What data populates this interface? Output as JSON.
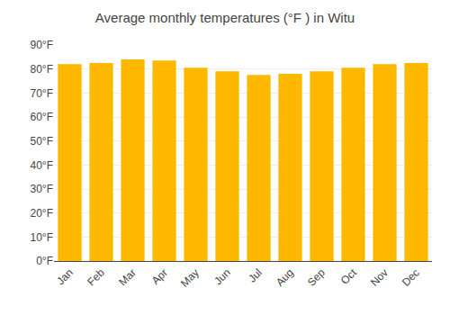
{
  "chart_data": {
    "type": "bar",
    "title": "Average monthly temperatures (°F ) in Witu",
    "categories": [
      "Jan",
      "Feb",
      "Mar",
      "Apr",
      "May",
      "Jun",
      "Jul",
      "Aug",
      "Sep",
      "Oct",
      "Nov",
      "Dec"
    ],
    "values": [
      82,
      82.5,
      84,
      83.5,
      80.5,
      79,
      77.5,
      78,
      79,
      80.5,
      82,
      82.5
    ],
    "color": "#FFB800",
    "ylim": [
      0,
      90
    ],
    "yticks": [
      {
        "value": 0,
        "label": "0°F"
      },
      {
        "value": 10,
        "label": "10°F"
      },
      {
        "value": 20,
        "label": "20°F"
      },
      {
        "value": 30,
        "label": "30°F"
      },
      {
        "value": 40,
        "label": "40°F"
      },
      {
        "value": 50,
        "label": "50°F"
      },
      {
        "value": 60,
        "label": "60°F"
      },
      {
        "value": 70,
        "label": "70°F"
      },
      {
        "value": 80,
        "label": "80°F"
      },
      {
        "value": 90,
        "label": "90°F"
      }
    ],
    "grid": true
  }
}
